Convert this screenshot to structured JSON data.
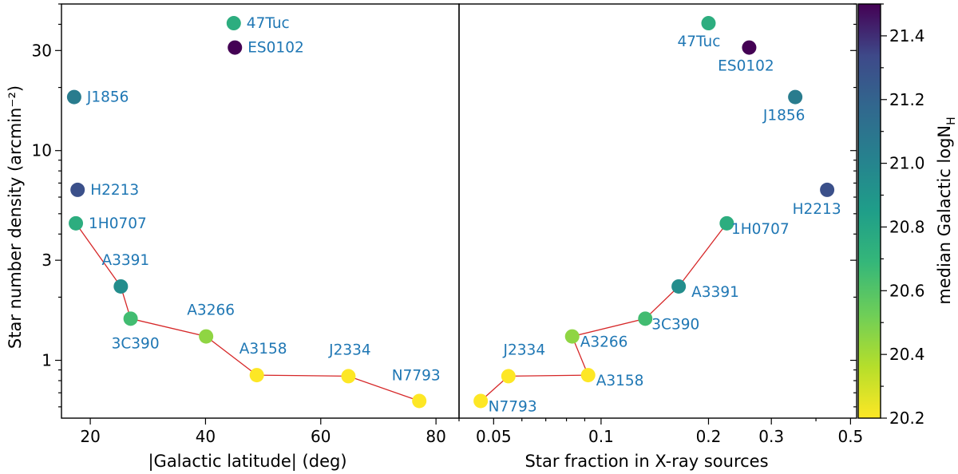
{
  "colorbar": {
    "label": "median Galactic logN",
    "label_sub": "H",
    "range": [
      20.2,
      21.5
    ],
    "ticks": [
      "20.2",
      "20.4",
      "20.6",
      "20.8",
      "21.0",
      "21.2",
      "21.4"
    ]
  },
  "chart_data": [
    {
      "type": "scatter",
      "xlabel": "|Galactic latitude| (deg)",
      "ylabel": "Star number density (arcmin⁻²)",
      "xscale": "linear",
      "yscale": "log",
      "xlim": [
        15,
        84
      ],
      "ylim": [
        0.53,
        50
      ],
      "xticks": [
        "20",
        "40",
        "60",
        "80"
      ],
      "yticks": [
        "1",
        "3",
        "10",
        "30"
      ],
      "points": [
        {
          "label": "47Tuc",
          "x": 44.9,
          "y": 40.5,
          "logNH": 20.75
        },
        {
          "label": "ES0102",
          "x": 45.1,
          "y": 31.0,
          "logNH": 21.5
        },
        {
          "label": "J1856",
          "x": 17.2,
          "y": 18.0,
          "logNH": 21.05
        },
        {
          "label": "H2213",
          "x": 17.8,
          "y": 6.5,
          "logNH": 21.3
        },
        {
          "label": "1H0707",
          "x": 17.5,
          "y": 4.5,
          "logNH": 20.75
        },
        {
          "label": "A3391",
          "x": 25.3,
          "y": 2.25,
          "logNH": 20.95
        },
        {
          "label": "3C390",
          "x": 27.0,
          "y": 1.58,
          "logNH": 20.65
        },
        {
          "label": "A3266",
          "x": 40.1,
          "y": 1.3,
          "logNH": 20.45
        },
        {
          "label": "A3158",
          "x": 48.9,
          "y": 0.85,
          "logNH": 20.2
        },
        {
          "label": "J2334",
          "x": 64.8,
          "y": 0.84,
          "logNH": 20.2
        },
        {
          "label": "N7793",
          "x": 77.1,
          "y": 0.64,
          "logNH": 20.2
        }
      ],
      "trail": [
        "1H0707",
        "A3391",
        "3C390",
        "A3266",
        "A3158",
        "J2334",
        "N7793"
      ]
    },
    {
      "type": "scatter",
      "xlabel": "Star fraction in X-ray sources",
      "ylabel": "",
      "xscale": "log",
      "yscale": "log",
      "xlim": [
        0.04,
        0.52
      ],
      "ylim": [
        0.53,
        50
      ],
      "xticks": [
        "0.05",
        "0.1",
        "0.2",
        "0.3",
        "0.5"
      ],
      "points": [
        {
          "label": "47Tuc",
          "x": 0.2,
          "y": 40.5,
          "logNH": 20.75
        },
        {
          "label": "ES0102",
          "x": 0.26,
          "y": 31.0,
          "logNH": 21.5
        },
        {
          "label": "J1856",
          "x": 0.35,
          "y": 18.0,
          "logNH": 21.05
        },
        {
          "label": "H2213",
          "x": 0.43,
          "y": 6.5,
          "logNH": 21.3
        },
        {
          "label": "1H0707",
          "x": 0.225,
          "y": 4.5,
          "logNH": 20.75
        },
        {
          "label": "A3391",
          "x": 0.165,
          "y": 2.25,
          "logNH": 20.95
        },
        {
          "label": "3C390",
          "x": 0.133,
          "y": 1.58,
          "logNH": 20.65
        },
        {
          "label": "A3266",
          "x": 0.083,
          "y": 1.3,
          "logNH": 20.45
        },
        {
          "label": "A3158",
          "x": 0.092,
          "y": 0.85,
          "logNH": 20.2
        },
        {
          "label": "J2334",
          "x": 0.055,
          "y": 0.84,
          "logNH": 20.2
        },
        {
          "label": "N7793",
          "x": 0.046,
          "y": 0.64,
          "logNH": 20.2
        }
      ],
      "trail": [
        "1H0707",
        "A3391",
        "3C390",
        "A3266",
        "A3158",
        "J2334",
        "N7793"
      ]
    }
  ]
}
